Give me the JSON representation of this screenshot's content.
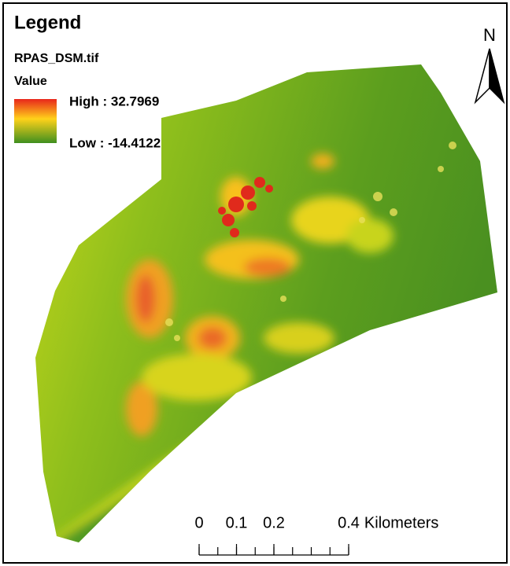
{
  "legend": {
    "title": "Legend",
    "layer": "RPAS_DSM.tif",
    "field": "Value",
    "high": "High : 32.7969",
    "low": "Low : -14.4122"
  },
  "north_arrow": {
    "label": "N"
  },
  "scale_bar": {
    "ticks": [
      0,
      0.1,
      0.2,
      0.4
    ],
    "unit": "Kilometers"
  }
}
